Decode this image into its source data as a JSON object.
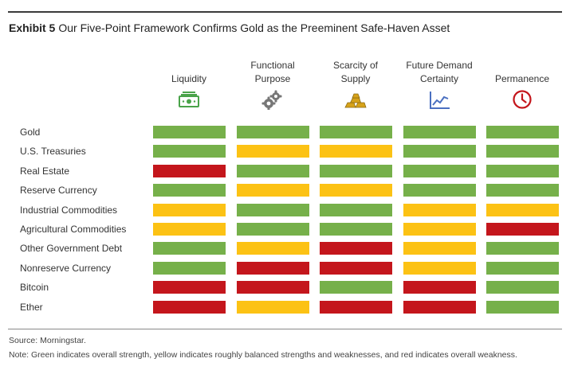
{
  "header": {
    "exhibit": "Exhibit 5",
    "title": "Our Five-Point Framework Confirms Gold as the Preeminent Safe-Haven Asset"
  },
  "colors": {
    "strength": "#76b04a",
    "balanced": "#fcc214",
    "weakness": "#c4161c",
    "icon_green": "#4aa34a",
    "icon_gray": "#777777",
    "icon_gold": "#d6a21a",
    "icon_blue": "#4a6fc0",
    "icon_red": "#c4161c"
  },
  "chart_data": {
    "type": "table",
    "columns": [
      {
        "lines": [
          "Liquidity"
        ],
        "icon": "money-bills-icon"
      },
      {
        "lines": [
          "Functional",
          "Purpose"
        ],
        "icon": "gears-icon"
      },
      {
        "lines": [
          "Scarcity of",
          "Supply"
        ],
        "icon": "gold-bars-icon"
      },
      {
        "lines": [
          "Future Demand",
          "Certainty"
        ],
        "icon": "line-chart-icon"
      },
      {
        "lines": [
          "Permanence"
        ],
        "icon": "clock-icon"
      }
    ],
    "rows": [
      {
        "label": "Gold",
        "ratings": [
          "green",
          "green",
          "green",
          "green",
          "green"
        ]
      },
      {
        "label": "U.S. Treasuries",
        "ratings": [
          "green",
          "yellow",
          "yellow",
          "green",
          "green"
        ]
      },
      {
        "label": "Real Estate",
        "ratings": [
          "red",
          "green",
          "green",
          "green",
          "green"
        ]
      },
      {
        "label": "Reserve Currency",
        "ratings": [
          "green",
          "yellow",
          "yellow",
          "green",
          "green"
        ]
      },
      {
        "label": "Industrial Commodities",
        "ratings": [
          "yellow",
          "green",
          "green",
          "yellow",
          "yellow"
        ]
      },
      {
        "label": "Agricultural Commodities",
        "ratings": [
          "yellow",
          "green",
          "green",
          "yellow",
          "red"
        ]
      },
      {
        "label": "Other Government Debt",
        "ratings": [
          "green",
          "yellow",
          "red",
          "yellow",
          "green"
        ]
      },
      {
        "label": "Nonreserve Currency",
        "ratings": [
          "green",
          "red",
          "red",
          "yellow",
          "green"
        ]
      },
      {
        "label": "Bitcoin",
        "ratings": [
          "red",
          "red",
          "green",
          "red",
          "green"
        ]
      },
      {
        "label": "Ether",
        "ratings": [
          "red",
          "yellow",
          "red",
          "red",
          "green"
        ]
      }
    ],
    "legend": {
      "green": "overall strength",
      "yellow": "roughly balanced strengths and weaknesses",
      "red": "overall weakness"
    }
  },
  "footer": {
    "source": "Source: Morningstar.",
    "note": "Note: Green indicates overall strength, yellow indicates roughly balanced strengths and weaknesses, and red indicates overall weakness."
  }
}
